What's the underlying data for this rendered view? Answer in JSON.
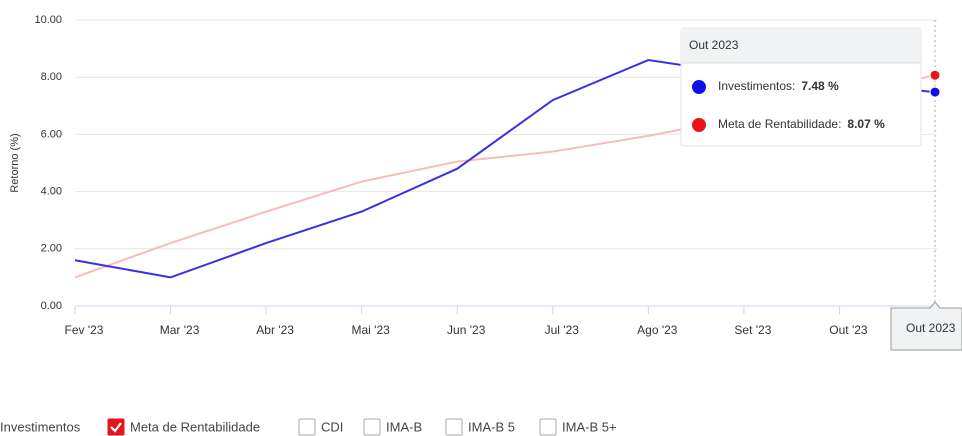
{
  "chart_data": {
    "type": "line",
    "y_label": "Retorno (%)",
    "x": [
      0,
      1,
      2,
      3,
      4,
      5,
      6,
      7,
      8,
      9
    ],
    "xlim": [
      0,
      9
    ],
    "xticks": [
      {
        "value": 0,
        "label": "Fev '23"
      },
      {
        "value": 1,
        "label": "Mar '23"
      },
      {
        "value": 2,
        "label": "Abr '23"
      },
      {
        "value": 3,
        "label": "Mai '23"
      },
      {
        "value": 4,
        "label": "Jun '23"
      },
      {
        "value": 5,
        "label": "Jul '23"
      },
      {
        "value": 6,
        "label": "Ago '23"
      },
      {
        "value": 7,
        "label": "Set '23"
      },
      {
        "value": 8,
        "label": "Out '23"
      }
    ],
    "ylim": [
      0,
      10
    ],
    "yticks": [
      {
        "value": 0,
        "label": "0.00"
      },
      {
        "value": 2,
        "label": "2.00"
      },
      {
        "value": 4,
        "label": "4.00"
      },
      {
        "value": 6,
        "label": "6.00"
      },
      {
        "value": 8,
        "label": "8.00"
      },
      {
        "value": 10,
        "label": "10.00"
      }
    ],
    "grid": true,
    "series": [
      {
        "name": "Investimentos",
        "color": "#3a30e0",
        "marker_color": "#1010e8",
        "checked": false,
        "values": [
          1.6,
          1.0,
          2.2,
          3.3,
          4.8,
          7.2,
          8.6,
          8.1,
          7.8,
          7.48
        ]
      },
      {
        "name": "Meta de Rentabilidade",
        "color": "#f5bdb8",
        "marker_color": "#e8141c",
        "checked": true,
        "values": [
          1.0,
          2.2,
          3.3,
          4.35,
          5.05,
          5.4,
          5.95,
          6.6,
          7.3,
          8.07
        ]
      }
    ],
    "legend_extra": [
      "CDI",
      "IMA-B",
      "IMA-B 5",
      "IMA-B 5+"
    ],
    "tooltip": {
      "title": "Out 2023",
      "items": [
        {
          "name": "Investimentos:",
          "value_label": "7.48 %"
        },
        {
          "name": "Meta de Rentabilidade:",
          "value_label": "8.07 %"
        }
      ]
    },
    "crosshair_label": "Out 2023"
  }
}
